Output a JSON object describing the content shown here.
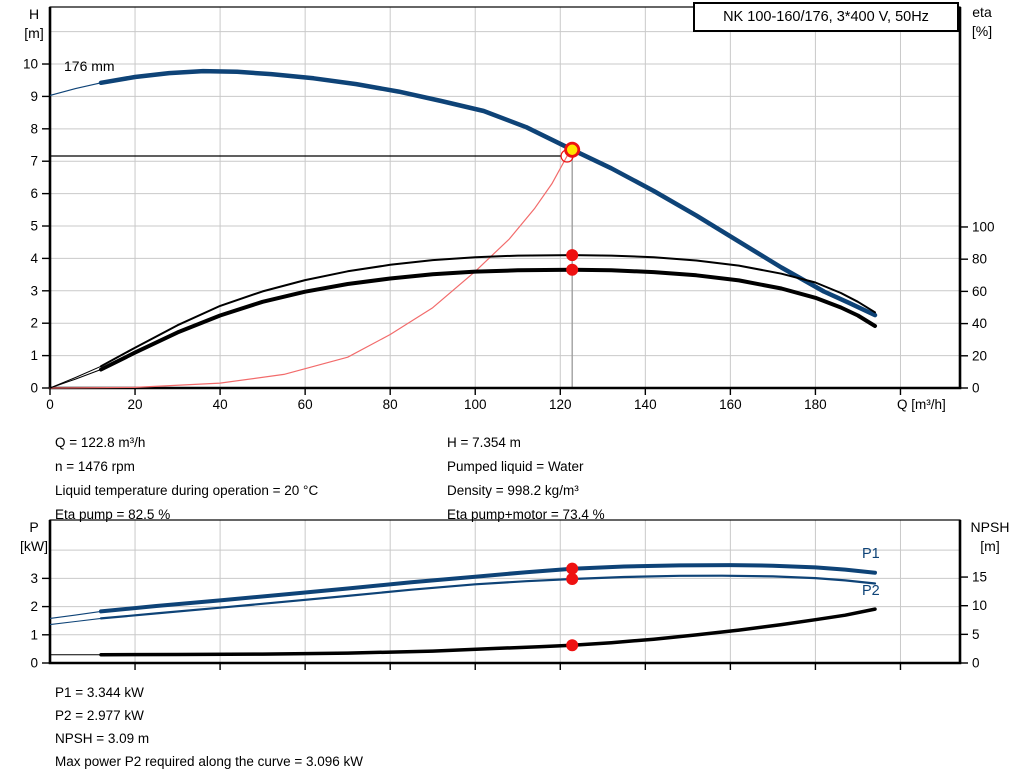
{
  "title_box": "NK 100-160/176, 3*400 V, 50Hz",
  "labels": {
    "h": "H",
    "h_unit": "[m]",
    "eta": "eta",
    "eta_unit": "[%]",
    "q": "Q [m³/h]",
    "p": "P",
    "p_unit": "[kW]",
    "npsh": "NPSH",
    "npsh_unit": "[m]",
    "impeller": "176 mm",
    "p1": "P1",
    "p2": "P2"
  },
  "info_top_left": [
    "Q = 122.8 m³/h",
    "n = 1476 rpm",
    "Liquid temperature during operation = 20 °C",
    "Eta pump = 82.5 %"
  ],
  "info_top_right": [
    "H = 7.354 m",
    "Pumped liquid = Water",
    "Density = 998.2 kg/m³",
    "Eta pump+motor = 73.4 %"
  ],
  "info_bottom": [
    "P1 = 3.344 kW",
    "P2 = 2.977 kW",
    "NPSH = 3.09 m",
    "Max power P2 required along the curve = 3.096 kW"
  ],
  "colors": {
    "blue": "#0e4377",
    "black": "#000000",
    "red": "#ee1111",
    "light_red": "#f26b6b",
    "yellow": "#ffe400",
    "grid": "#c9c9c9",
    "duty_line": "#9a9a9a"
  },
  "chart_data": [
    {
      "type": "line",
      "title": "NK 100-160/176, 3*400 V, 50Hz",
      "xlabel": "Q [m³/h]",
      "ylabel_left": "H [m]",
      "ylabel_right": "eta [%]",
      "impeller_diameter": "176 mm",
      "plot": {
        "l": 50,
        "t": 7,
        "r": 960,
        "b": 388
      },
      "x": {
        "min": 0,
        "max": 214,
        "grid": [
          20,
          40,
          60,
          80,
          100,
          120,
          140,
          160,
          180,
          200
        ],
        "ticks": [
          {
            "q": 0,
            "label": "0"
          },
          {
            "q": 20,
            "label": "20"
          },
          {
            "q": 40,
            "label": "40"
          },
          {
            "q": 60,
            "label": "60"
          },
          {
            "q": 80,
            "label": "80"
          },
          {
            "q": 100,
            "label": "100"
          },
          {
            "q": 120,
            "label": "120"
          },
          {
            "q": 140,
            "label": "140"
          },
          {
            "q": 160,
            "label": "160"
          },
          {
            "q": 180,
            "label": "180"
          },
          {
            "q": 200
          }
        ]
      },
      "left": {
        "min": 0,
        "max": 11.76,
        "grid": [
          1,
          2,
          3,
          4,
          5,
          6,
          7,
          8,
          9,
          10,
          11
        ],
        "ticks": [
          {
            "v": 0,
            "label": "0"
          },
          {
            "v": 1,
            "label": "1"
          },
          {
            "v": 2,
            "label": "2"
          },
          {
            "v": 3,
            "label": "3"
          },
          {
            "v": 4,
            "label": "4"
          },
          {
            "v": 5,
            "label": "5"
          },
          {
            "v": 6,
            "label": "6"
          },
          {
            "v": 7,
            "label": "7"
          },
          {
            "v": 8,
            "label": "8"
          },
          {
            "v": 9,
            "label": "9"
          },
          {
            "v": 10,
            "label": "10"
          }
        ]
      },
      "right": {
        "min": 0,
        "max": 236.6,
        "ticks": [
          {
            "v": 0,
            "label": "0"
          },
          {
            "v": 20,
            "label": "20"
          },
          {
            "v": 40,
            "label": "40"
          },
          {
            "v": 60,
            "label": "60"
          },
          {
            "v": 80,
            "label": "80"
          },
          {
            "v": 100,
            "label": "100"
          }
        ]
      },
      "duty": {
        "q": 122.8,
        "h": 7.354,
        "request_q": 121.6,
        "request_h": 7.16
      },
      "series": [
        {
          "name": "system-curve",
          "color": "light_red",
          "axis": "left",
          "width": 1.2,
          "points": [
            [
              0,
              0
            ],
            [
              20,
              0.02
            ],
            [
              40,
              0.15
            ],
            [
              55,
              0.42
            ],
            [
              70,
              0.95
            ],
            [
              80,
              1.65
            ],
            [
              90,
              2.48
            ],
            [
              100,
              3.6
            ],
            [
              108,
              4.6
            ],
            [
              114,
              5.55
            ],
            [
              118,
              6.3
            ],
            [
              121.6,
              7.16
            ]
          ]
        },
        {
          "name": "head-176mm",
          "color": "blue",
          "axis": "left",
          "width": 4.5,
          "thin_width": 1.2,
          "thin": [
            [
              0,
              9.03
            ],
            [
              6,
              9.24
            ],
            [
              12,
              9.42
            ]
          ],
          "points": [
            [
              12,
              9.42
            ],
            [
              20,
              9.6
            ],
            [
              28,
              9.72
            ],
            [
              36,
              9.78
            ],
            [
              44,
              9.76
            ],
            [
              52,
              9.69
            ],
            [
              62,
              9.56
            ],
            [
              72,
              9.38
            ],
            [
              82,
              9.15
            ],
            [
              92,
              8.86
            ],
            [
              102,
              8.55
            ],
            [
              112,
              8.05
            ],
            [
              122.8,
              7.354
            ],
            [
              132,
              6.78
            ],
            [
              142,
              6.08
            ],
            [
              152,
              5.32
            ],
            [
              162,
              4.52
            ],
            [
              172,
              3.72
            ],
            [
              182,
              2.98
            ],
            [
              188,
              2.62
            ],
            [
              194,
              2.25
            ]
          ]
        },
        {
          "name": "eta-pump",
          "color": "black",
          "axis": "right",
          "width": 2,
          "thin_width": 1,
          "thin": [
            [
              0,
              0
            ],
            [
              6,
              6.5
            ],
            [
              12,
              13.5
            ]
          ],
          "points": [
            [
              12,
              13.5
            ],
            [
              20,
              25
            ],
            [
              30,
              39
            ],
            [
              40,
              51
            ],
            [
              50,
              60
            ],
            [
              60,
              67
            ],
            [
              70,
              72.5
            ],
            [
              80,
              76.5
            ],
            [
              90,
              79.4
            ],
            [
              100,
              81.2
            ],
            [
              110,
              82.2
            ],
            [
              122.8,
              82.5
            ],
            [
              132,
              82.2
            ],
            [
              142,
              81.2
            ],
            [
              152,
              79.2
            ],
            [
              162,
              76
            ],
            [
              172,
              71
            ],
            [
              180,
              65.5
            ],
            [
              186,
              59
            ],
            [
              190,
              53.5
            ],
            [
              194,
              47
            ]
          ]
        },
        {
          "name": "eta-pump-motor",
          "color": "black",
          "axis": "right",
          "width": 4,
          "thin_width": 1,
          "thin": [
            [
              0,
              0
            ],
            [
              6,
              5.5
            ],
            [
              12,
              11.5
            ]
          ],
          "points": [
            [
              12,
              11.5
            ],
            [
              20,
              22
            ],
            [
              30,
              34.5
            ],
            [
              40,
              45
            ],
            [
              50,
              53.5
            ],
            [
              60,
              59.8
            ],
            [
              70,
              64.6
            ],
            [
              80,
              68
            ],
            [
              90,
              70.7
            ],
            [
              100,
              72.3
            ],
            [
              110,
              73.1
            ],
            [
              122.8,
              73.4
            ],
            [
              132,
              73.1
            ],
            [
              142,
              72
            ],
            [
              152,
              70
            ],
            [
              162,
              66.8
            ],
            [
              172,
              61.8
            ],
            [
              180,
              56
            ],
            [
              186,
              50
            ],
            [
              190,
              45
            ],
            [
              194,
              38.5
            ]
          ]
        }
      ],
      "markers": [
        {
          "type": "dot",
          "q": 122.8,
          "v": 82.5,
          "axis": "right"
        },
        {
          "type": "dot",
          "q": 122.8,
          "v": 73.4,
          "axis": "right"
        },
        {
          "type": "duty",
          "q": 122.8,
          "v": 7.354,
          "axis": "left"
        }
      ]
    },
    {
      "type": "line",
      "title": "Power and NPSH curves",
      "xlabel": "",
      "ylabel_left": "P [kW]",
      "ylabel_right": "NPSH [m]",
      "plot": {
        "l": 50,
        "t": 520,
        "r": 960,
        "b": 663
      },
      "x": {
        "min": 0,
        "max": 214,
        "grid": [
          20,
          40,
          60,
          80,
          100,
          120,
          140,
          160,
          180,
          200
        ],
        "ticks": [
          {
            "q": 20
          },
          {
            "q": 40
          },
          {
            "q": 60
          },
          {
            "q": 80
          },
          {
            "q": 100
          },
          {
            "q": 120
          },
          {
            "q": 140
          },
          {
            "q": 160
          },
          {
            "q": 180
          },
          {
            "q": 200
          }
        ]
      },
      "left": {
        "min": 0,
        "max": 5.07,
        "grid": [
          1,
          2,
          3,
          4
        ],
        "ticks": [
          {
            "v": 0,
            "label": "0"
          },
          {
            "v": 1,
            "label": "1"
          },
          {
            "v": 2,
            "label": "2"
          },
          {
            "v": 3,
            "label": "3"
          }
        ]
      },
      "right": {
        "min": 0,
        "max": 24.96,
        "ticks": [
          {
            "v": 0,
            "label": "0"
          },
          {
            "v": 5,
            "label": "5"
          },
          {
            "v": 10,
            "label": "10"
          },
          {
            "v": 15,
            "label": "15"
          }
        ]
      },
      "series": [
        {
          "name": "p1",
          "color": "blue",
          "axis": "left",
          "width": 4,
          "thin_width": 1.1,
          "thin": [
            [
              0,
              1.58
            ],
            [
              6,
              1.7
            ],
            [
              12,
              1.83
            ]
          ],
          "points": [
            [
              12,
              1.83
            ],
            [
              25,
              2.02
            ],
            [
              40,
              2.22
            ],
            [
              55,
              2.43
            ],
            [
              70,
              2.64
            ],
            [
              85,
              2.86
            ],
            [
              100,
              3.06
            ],
            [
              112,
              3.22
            ],
            [
              122.8,
              3.344
            ],
            [
              135,
              3.42
            ],
            [
              148,
              3.46
            ],
            [
              160,
              3.47
            ],
            [
              170,
              3.45
            ],
            [
              180,
              3.39
            ],
            [
              187,
              3.31
            ],
            [
              194,
              3.2
            ]
          ]
        },
        {
          "name": "p2",
          "color": "blue",
          "axis": "left",
          "width": 2.2,
          "thin_width": 1.1,
          "thin": [
            [
              0,
              1.36
            ],
            [
              6,
              1.47
            ],
            [
              12,
              1.58
            ]
          ],
          "points": [
            [
              12,
              1.58
            ],
            [
              25,
              1.76
            ],
            [
              40,
              1.96
            ],
            [
              55,
              2.17
            ],
            [
              70,
              2.38
            ],
            [
              85,
              2.6
            ],
            [
              100,
              2.79
            ],
            [
              112,
              2.9
            ],
            [
              122.8,
              2.977
            ],
            [
              135,
              3.05
            ],
            [
              148,
              3.09
            ],
            [
              158,
              3.096
            ],
            [
              170,
              3.07
            ],
            [
              180,
              3.01
            ],
            [
              187,
              2.93
            ],
            [
              194,
              2.82
            ]
          ]
        },
        {
          "name": "npsh",
          "color": "black",
          "axis": "right",
          "width": 3.5,
          "thin_width": 1,
          "thin": [
            [
              0,
              1.45
            ],
            [
              6,
              1.45
            ],
            [
              12,
              1.45
            ]
          ],
          "points": [
            [
              12,
              1.45
            ],
            [
              30,
              1.48
            ],
            [
              50,
              1.56
            ],
            [
              70,
              1.72
            ],
            [
              90,
              2.08
            ],
            [
              105,
              2.55
            ],
            [
              115,
              2.85
            ],
            [
              122.8,
              3.09
            ],
            [
              132,
              3.55
            ],
            [
              142,
              4.15
            ],
            [
              152,
              4.9
            ],
            [
              162,
              5.75
            ],
            [
              172,
              6.7
            ],
            [
              180,
              7.55
            ],
            [
              187,
              8.35
            ],
            [
              194,
              9.4
            ]
          ]
        }
      ],
      "markers": [
        {
          "type": "dot",
          "q": 122.8,
          "v": 3.344,
          "axis": "left"
        },
        {
          "type": "dot",
          "q": 122.8,
          "v": 2.977,
          "axis": "left"
        },
        {
          "type": "dot",
          "q": 122.8,
          "v": 3.09,
          "axis": "right"
        }
      ]
    }
  ]
}
